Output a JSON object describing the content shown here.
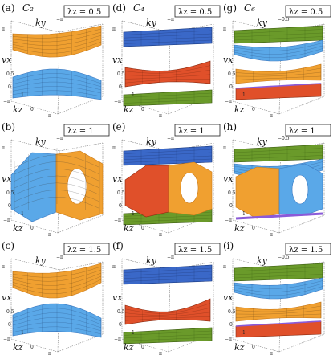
{
  "columns": [
    {
      "symmetry": "C_2",
      "symmetry_display": "C₂"
    },
    {
      "symmetry": "C_4",
      "symmetry_display": "C₄"
    },
    {
      "symmetry": "C_6",
      "symmetry_display": "C₆"
    }
  ],
  "rows": [
    {
      "lambda_label": "λz = 0.5"
    },
    {
      "lambda_label": "λz = 1"
    },
    {
      "lambda_label": "λz = 1.5"
    }
  ],
  "panels": [
    {
      "tag": "(a)",
      "row": 0,
      "col": 0
    },
    {
      "tag": "(b)",
      "row": 1,
      "col": 0
    },
    {
      "tag": "(c)",
      "row": 2,
      "col": 0
    },
    {
      "tag": "(d)",
      "row": 0,
      "col": 1
    },
    {
      "tag": "(e)",
      "row": 1,
      "col": 1
    },
    {
      "tag": "(f)",
      "row": 2,
      "col": 1
    },
    {
      "tag": "(g)",
      "row": 0,
      "col": 2
    },
    {
      "tag": "(h)",
      "row": 1,
      "col": 2
    },
    {
      "tag": "(i)",
      "row": 2,
      "col": 2
    }
  ],
  "axis_labels": {
    "ky": "ky",
    "vx": "vx",
    "kz": "kz"
  },
  "ticks": {
    "pi": "π",
    "neg_pi": "−π",
    "zero": "0",
    "half": "0.5",
    "neg_half": "−0.5",
    "one": "1"
  },
  "colors": {
    "orange": "#f0a030",
    "orange_dark": "#c87818",
    "blue": "#5aa8e8",
    "blue_dark": "#3a78c0",
    "deep_blue": "#3a68c8",
    "green": "#6a9a2a",
    "red": "#e0502a",
    "purple": "#8a5ad8",
    "box_line": "#333333"
  }
}
